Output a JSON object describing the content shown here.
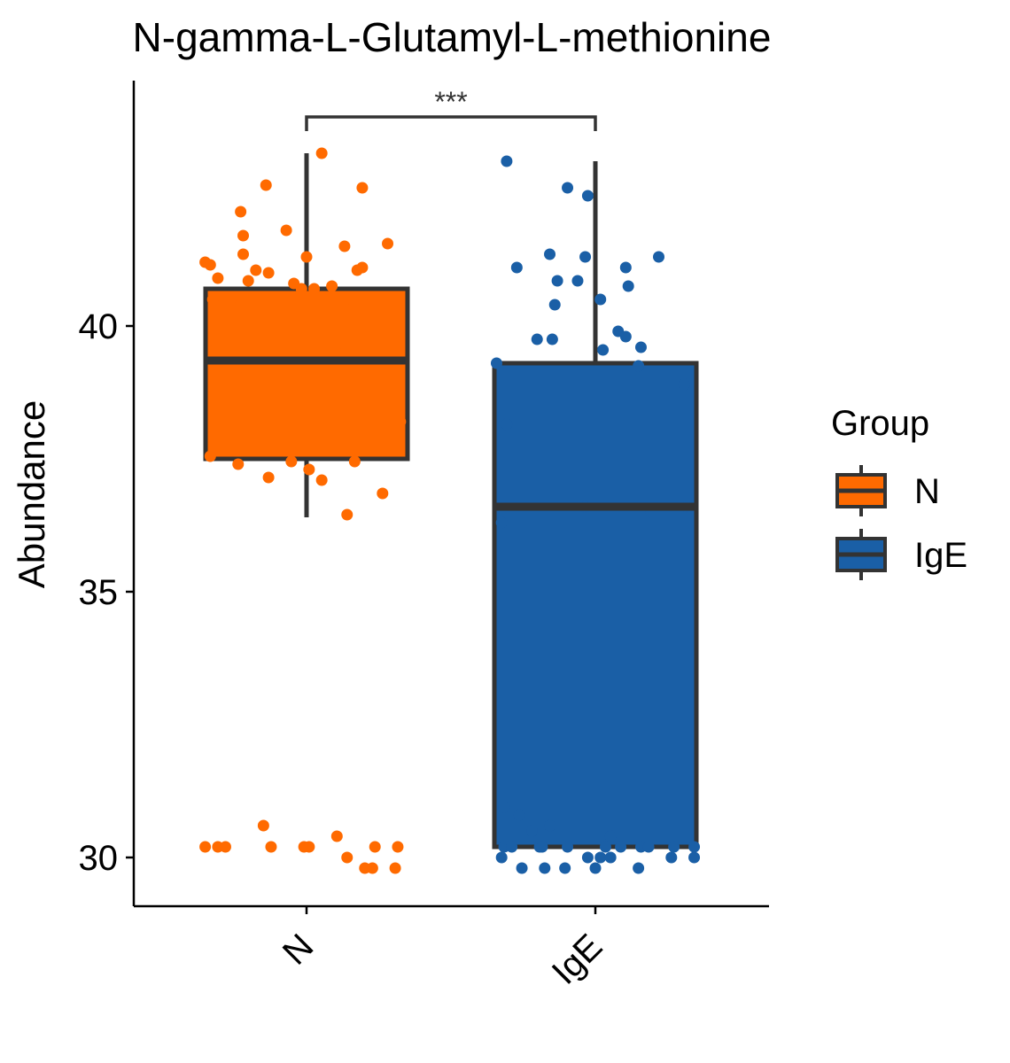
{
  "chart_data": {
    "type": "boxplot",
    "title": "N-gamma-L-Glutamyl-L-methionine",
    "xlabel": "",
    "ylabel": "Abundance",
    "ylim": [
      29.1,
      44.6
    ],
    "yticks": [
      30,
      35,
      40
    ],
    "categories": [
      "N",
      "IgE"
    ],
    "significance": {
      "label": "***",
      "between": [
        "N",
        "IgE"
      ]
    },
    "legend": {
      "title": "Group",
      "position": "right",
      "entries": [
        {
          "label": "N",
          "color": "#FF6A00"
        },
        {
          "label": "IgE",
          "color": "#1A5FA6"
        }
      ]
    },
    "series": [
      {
        "name": "N",
        "color": "#FF6A00",
        "box": {
          "whisker_low": 36.4,
          "q1": 37.5,
          "median": 39.35,
          "q3": 40.7,
          "whisker_high": 43.25
        },
        "points": [
          [
            -0.4,
            41.2
          ],
          [
            -0.38,
            41.15
          ],
          [
            -0.35,
            40.9
          ],
          [
            -0.26,
            42.15
          ],
          [
            -0.25,
            41.7
          ],
          [
            -0.25,
            41.35
          ],
          [
            -0.16,
            42.65
          ],
          [
            -0.2,
            41.05
          ],
          [
            -0.08,
            41.8
          ],
          [
            -0.15,
            41.0
          ],
          [
            -0.05,
            40.8
          ],
          [
            0.0,
            41.3
          ],
          [
            0.06,
            43.25
          ],
          [
            0.15,
            41.5
          ],
          [
            0.22,
            42.6
          ],
          [
            0.32,
            41.55
          ],
          [
            0.2,
            41.05
          ],
          [
            0.22,
            41.1
          ],
          [
            -0.23,
            40.85
          ],
          [
            0.1,
            40.75
          ],
          [
            0.03,
            40.7
          ],
          [
            -0.02,
            40.7
          ],
          [
            0.18,
            40.5
          ],
          [
            0.22,
            40.55
          ],
          [
            -0.37,
            40.5
          ],
          [
            -0.3,
            40.5
          ],
          [
            0.35,
            40.25
          ],
          [
            0.35,
            39.85
          ],
          [
            -0.36,
            39.7
          ],
          [
            0.15,
            39.5
          ],
          [
            -0.24,
            39.2
          ],
          [
            -0.02,
            39.2
          ],
          [
            0.26,
            39.25
          ],
          [
            -0.35,
            38.4
          ],
          [
            -0.05,
            38.5
          ],
          [
            0.37,
            38.2
          ],
          [
            -0.38,
            37.55
          ],
          [
            -0.27,
            37.4
          ],
          [
            -0.06,
            37.45
          ],
          [
            0.19,
            37.45
          ],
          [
            0.01,
            37.3
          ],
          [
            -0.15,
            37.15
          ],
          [
            0.06,
            37.1
          ],
          [
            0.3,
            36.85
          ],
          [
            0.16,
            36.45
          ],
          [
            -0.4,
            30.2
          ],
          [
            -0.35,
            30.2
          ],
          [
            -0.32,
            30.2
          ],
          [
            -0.17,
            30.6
          ],
          [
            -0.14,
            30.2
          ],
          [
            -0.01,
            30.2
          ],
          [
            0.01,
            30.2
          ],
          [
            0.12,
            30.4
          ],
          [
            0.16,
            30.0
          ],
          [
            0.23,
            29.8
          ],
          [
            0.26,
            29.8
          ],
          [
            0.27,
            30.2
          ],
          [
            0.35,
            29.8
          ],
          [
            0.36,
            30.2
          ]
        ]
      },
      {
        "name": "IgE",
        "color": "#1A5FA6",
        "box": {
          "whisker_low": 30.2,
          "q1": 30.2,
          "median": 36.6,
          "q3": 39.3,
          "whisker_high": 43.1
        },
        "points": [
          [
            -0.35,
            43.1
          ],
          [
            -0.11,
            42.6
          ],
          [
            -0.03,
            42.45
          ],
          [
            -0.31,
            41.1
          ],
          [
            -0.18,
            41.35
          ],
          [
            -0.04,
            41.3
          ],
          [
            0.12,
            41.1
          ],
          [
            0.25,
            41.3
          ],
          [
            -0.15,
            40.85
          ],
          [
            -0.07,
            40.85
          ],
          [
            0.13,
            40.75
          ],
          [
            0.02,
            40.5
          ],
          [
            -0.16,
            40.4
          ],
          [
            0.09,
            39.9
          ],
          [
            -0.23,
            39.75
          ],
          [
            -0.17,
            39.75
          ],
          [
            0.12,
            39.8
          ],
          [
            0.18,
            39.6
          ],
          [
            0.03,
            39.55
          ],
          [
            -0.39,
            39.3
          ],
          [
            0.17,
            39.25
          ],
          [
            0.35,
            38.9
          ],
          [
            -0.35,
            38.15
          ],
          [
            -0.04,
            36.6
          ],
          [
            0.22,
            36.5
          ],
          [
            0.36,
            36.6
          ],
          [
            -0.37,
            36.3
          ],
          [
            -0.36,
            30.95
          ],
          [
            -0.3,
            30.8
          ],
          [
            -0.25,
            30.5
          ],
          [
            -0.18,
            30.6
          ],
          [
            0.06,
            30.4
          ],
          [
            -0.36,
            30.2
          ],
          [
            -0.33,
            30.2
          ],
          [
            -0.22,
            30.2
          ],
          [
            -0.21,
            30.2
          ],
          [
            -0.11,
            30.2
          ],
          [
            0.04,
            30.2
          ],
          [
            0.1,
            30.2
          ],
          [
            0.18,
            30.2
          ],
          [
            0.21,
            30.2
          ],
          [
            0.31,
            30.2
          ],
          [
            0.39,
            30.2
          ],
          [
            -0.37,
            30.0
          ],
          [
            -0.03,
            30.0
          ],
          [
            0.02,
            30.0
          ],
          [
            0.06,
            30.0
          ],
          [
            0.3,
            30.0
          ],
          [
            0.39,
            30.0
          ],
          [
            -0.29,
            29.8
          ],
          [
            -0.2,
            29.8
          ],
          [
            -0.12,
            29.8
          ],
          [
            0.0,
            29.8
          ],
          [
            0.17,
            29.8
          ]
        ]
      }
    ]
  }
}
